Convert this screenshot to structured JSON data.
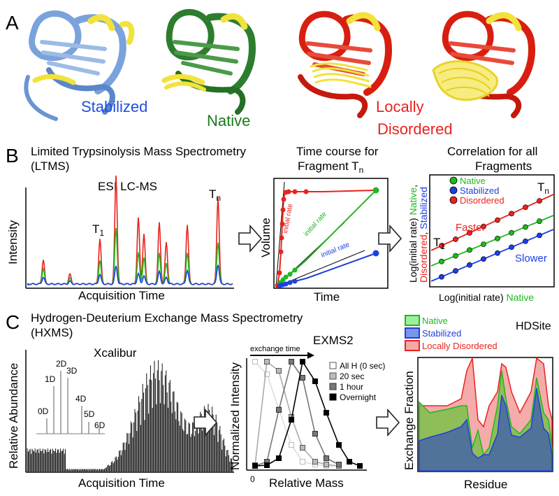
{
  "panelA": {
    "letter": "A",
    "labels": {
      "stabilized": "Stabilized",
      "native": "Native",
      "locally": "Locally",
      "disordered": "Disordered"
    }
  },
  "panelB": {
    "letter": "B",
    "title": "Limited Trypsinolysis Mass Spectrometry",
    "subtitle": "(LTMS)",
    "esi": "ESI LC-MS",
    "ylabel": "Intensity",
    "xlabel": "Acquisition Time",
    "peakT1": "T",
    "peakT1sub": "1",
    "peakTn": "T",
    "peakTnsub": "n",
    "timecourse": {
      "title1": "Time course for",
      "title2": "Fragment T",
      "title2sub": "n",
      "ylabel": "Volume",
      "xlabel": "Time",
      "rate_label": "initial rate"
    },
    "correlation": {
      "title1": "Correlation for all",
      "title2": "Fragments",
      "ylabel_parts": [
        "Log(initial rate) ",
        "Native",
        ",",
        "Disordered",
        ", ",
        "Stabilized"
      ],
      "xlabel_a": "Log(initial rate) ",
      "xlabel_b": "Native",
      "legend": [
        "Native",
        "Stabilized",
        "Disordered"
      ],
      "faster": "Faster",
      "slower": "Slower",
      "t1": "T",
      "t1sub": "1",
      "tn": "T",
      "tnsub": "n"
    }
  },
  "panelC": {
    "letter": "C",
    "title": "Hydrogen-Deuterium Exchange Mass Spectrometry",
    "subtitle": "(HXMS)",
    "xcalibur": "Xcalibur",
    "ylabel": "Relative Abundance",
    "xlabel": "Acquisition Time",
    "isotopes": [
      "0D",
      "1D",
      "2D",
      "3D",
      "4D",
      "5D",
      "6D"
    ],
    "exms": {
      "title": "EXMS2",
      "arrow_label": "exchange time",
      "ylabel": "Normalized Intensity",
      "xlabel": "Relative Mass",
      "zero": "0",
      "legend": [
        "All H (0 sec)",
        "20 sec",
        "1 hour",
        "Overnight"
      ]
    },
    "hdsite": {
      "title": "HDSite",
      "legend": [
        "Native",
        "Stabilized",
        "Locally Disordered"
      ],
      "ylabel": "Exchange Fraction",
      "xlabel": "Residue"
    }
  },
  "colors": {
    "blue": "#1f3fe0",
    "green": "#1fb81f",
    "red": "#e8231e",
    "darkgreen": "#1a7a1a",
    "stabilized_protein": "#7aa2dc",
    "native_protein": "#2e7d2e",
    "disordered_protein": "#d81e10",
    "loop": "#f2e23a"
  }
}
